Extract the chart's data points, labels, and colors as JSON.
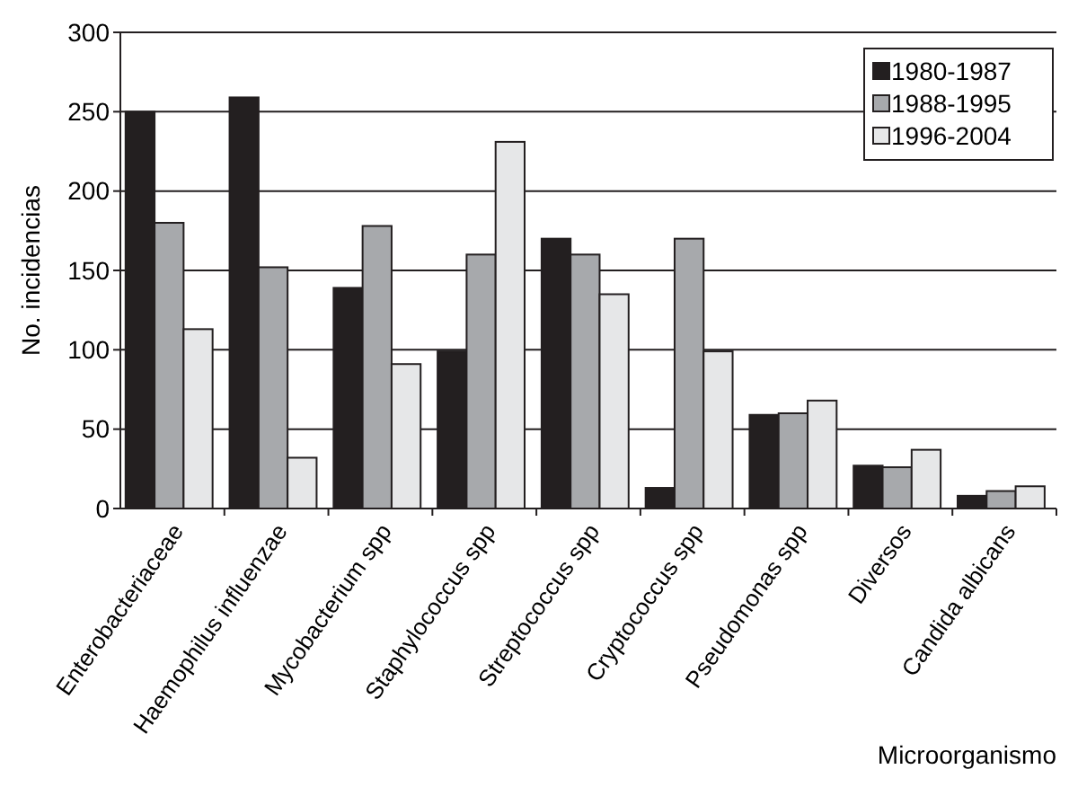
{
  "chart_data": {
    "type": "bar",
    "xlabel": "Microorganismo",
    "ylabel": "No. incidencias",
    "categories": [
      "Enterobacteriaceae",
      "Haemophilus influenzae",
      "Mycobacterium spp",
      "Staphylococcus spp",
      "Streptococcus spp",
      "Cryptococcus spp",
      "Pseudomonas spp",
      "Diversos",
      "Candida albicans"
    ],
    "series": [
      {
        "name": "1980-1987",
        "color": "#231f20",
        "values": [
          250,
          259,
          139,
          99,
          170,
          13,
          59,
          27,
          8
        ]
      },
      {
        "name": "1988-1995",
        "color": "#a7a9ac",
        "values": [
          180,
          152,
          178,
          160,
          160,
          170,
          60,
          26,
          11
        ]
      },
      {
        "name": "1996-2004",
        "color": "#e6e7e8",
        "values": [
          113,
          32,
          91,
          231,
          135,
          99,
          68,
          37,
          14
        ]
      }
    ],
    "ylim": [
      0,
      300
    ],
    "yticks": [
      0,
      50,
      100,
      150,
      200,
      250,
      300
    ],
    "grid": "y",
    "legend": "top right"
  }
}
